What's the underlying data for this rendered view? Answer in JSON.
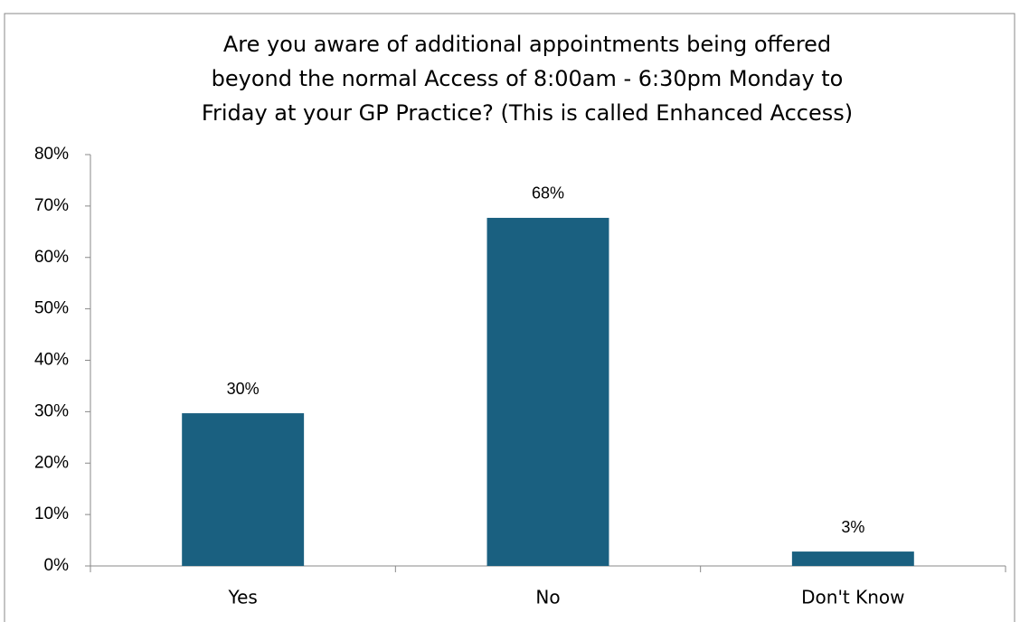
{
  "chart_data": {
    "type": "bar",
    "title": [
      "Are you aware of additional appointments being offered",
      "beyond the normal Access of 8:00am - 6:30pm Monday to",
      "Friday at your GP Practice? (This is called Enhanced Access)"
    ],
    "categories": [
      "Yes",
      "No",
      "Don't Know"
    ],
    "values": [
      29.7,
      67.7,
      2.8
    ],
    "value_labels": [
      "30%",
      "68%",
      "3%"
    ],
    "color": "#1a6080",
    "ylim": [
      0,
      80
    ],
    "yticks": [
      {
        "value": 0,
        "label": "0%"
      },
      {
        "value": 10,
        "label": "10%"
      },
      {
        "value": 20,
        "label": "20%"
      },
      {
        "value": 30,
        "label": "30%"
      },
      {
        "value": 40,
        "label": "40%"
      },
      {
        "value": 50,
        "label": "50%"
      },
      {
        "value": 60,
        "label": "60%"
      },
      {
        "value": 70,
        "label": "70%"
      },
      {
        "value": 80,
        "label": "80%"
      }
    ],
    "grid": false
  }
}
